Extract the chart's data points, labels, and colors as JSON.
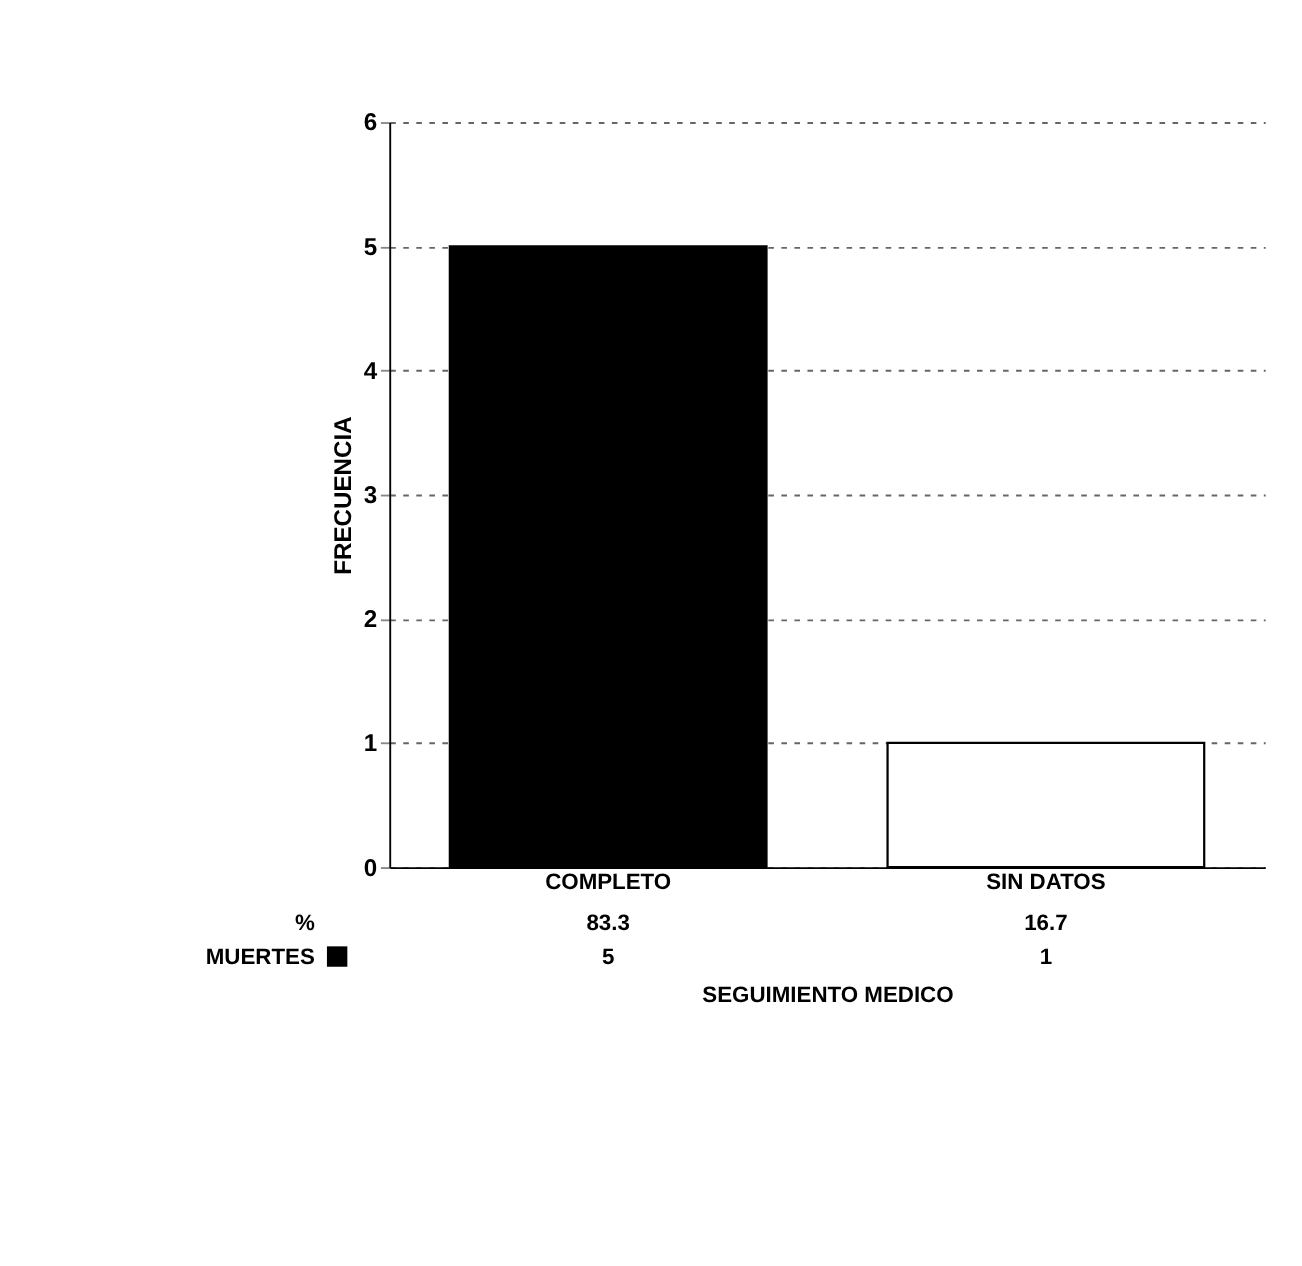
{
  "chart_data": {
    "type": "bar",
    "xlabel": "SEGUIMIENTO MEDICO",
    "ylabel": "FRECUENCIA",
    "categories": [
      "COMPLETO",
      "SIN DATOS"
    ],
    "series": [
      {
        "name": "MUERTES",
        "color": "#000000",
        "colors": [
          "#000000",
          "#ffffff"
        ],
        "values": [
          5,
          1
        ]
      }
    ],
    "annotations": [
      "%",
      "83.3",
      "16.7"
    ],
    "ylim": [
      0,
      6
    ],
    "yticks": [
      0,
      1,
      2,
      3,
      4,
      5,
      6
    ],
    "grid": "y",
    "legend": "bottom left",
    "data_labels": true
  }
}
